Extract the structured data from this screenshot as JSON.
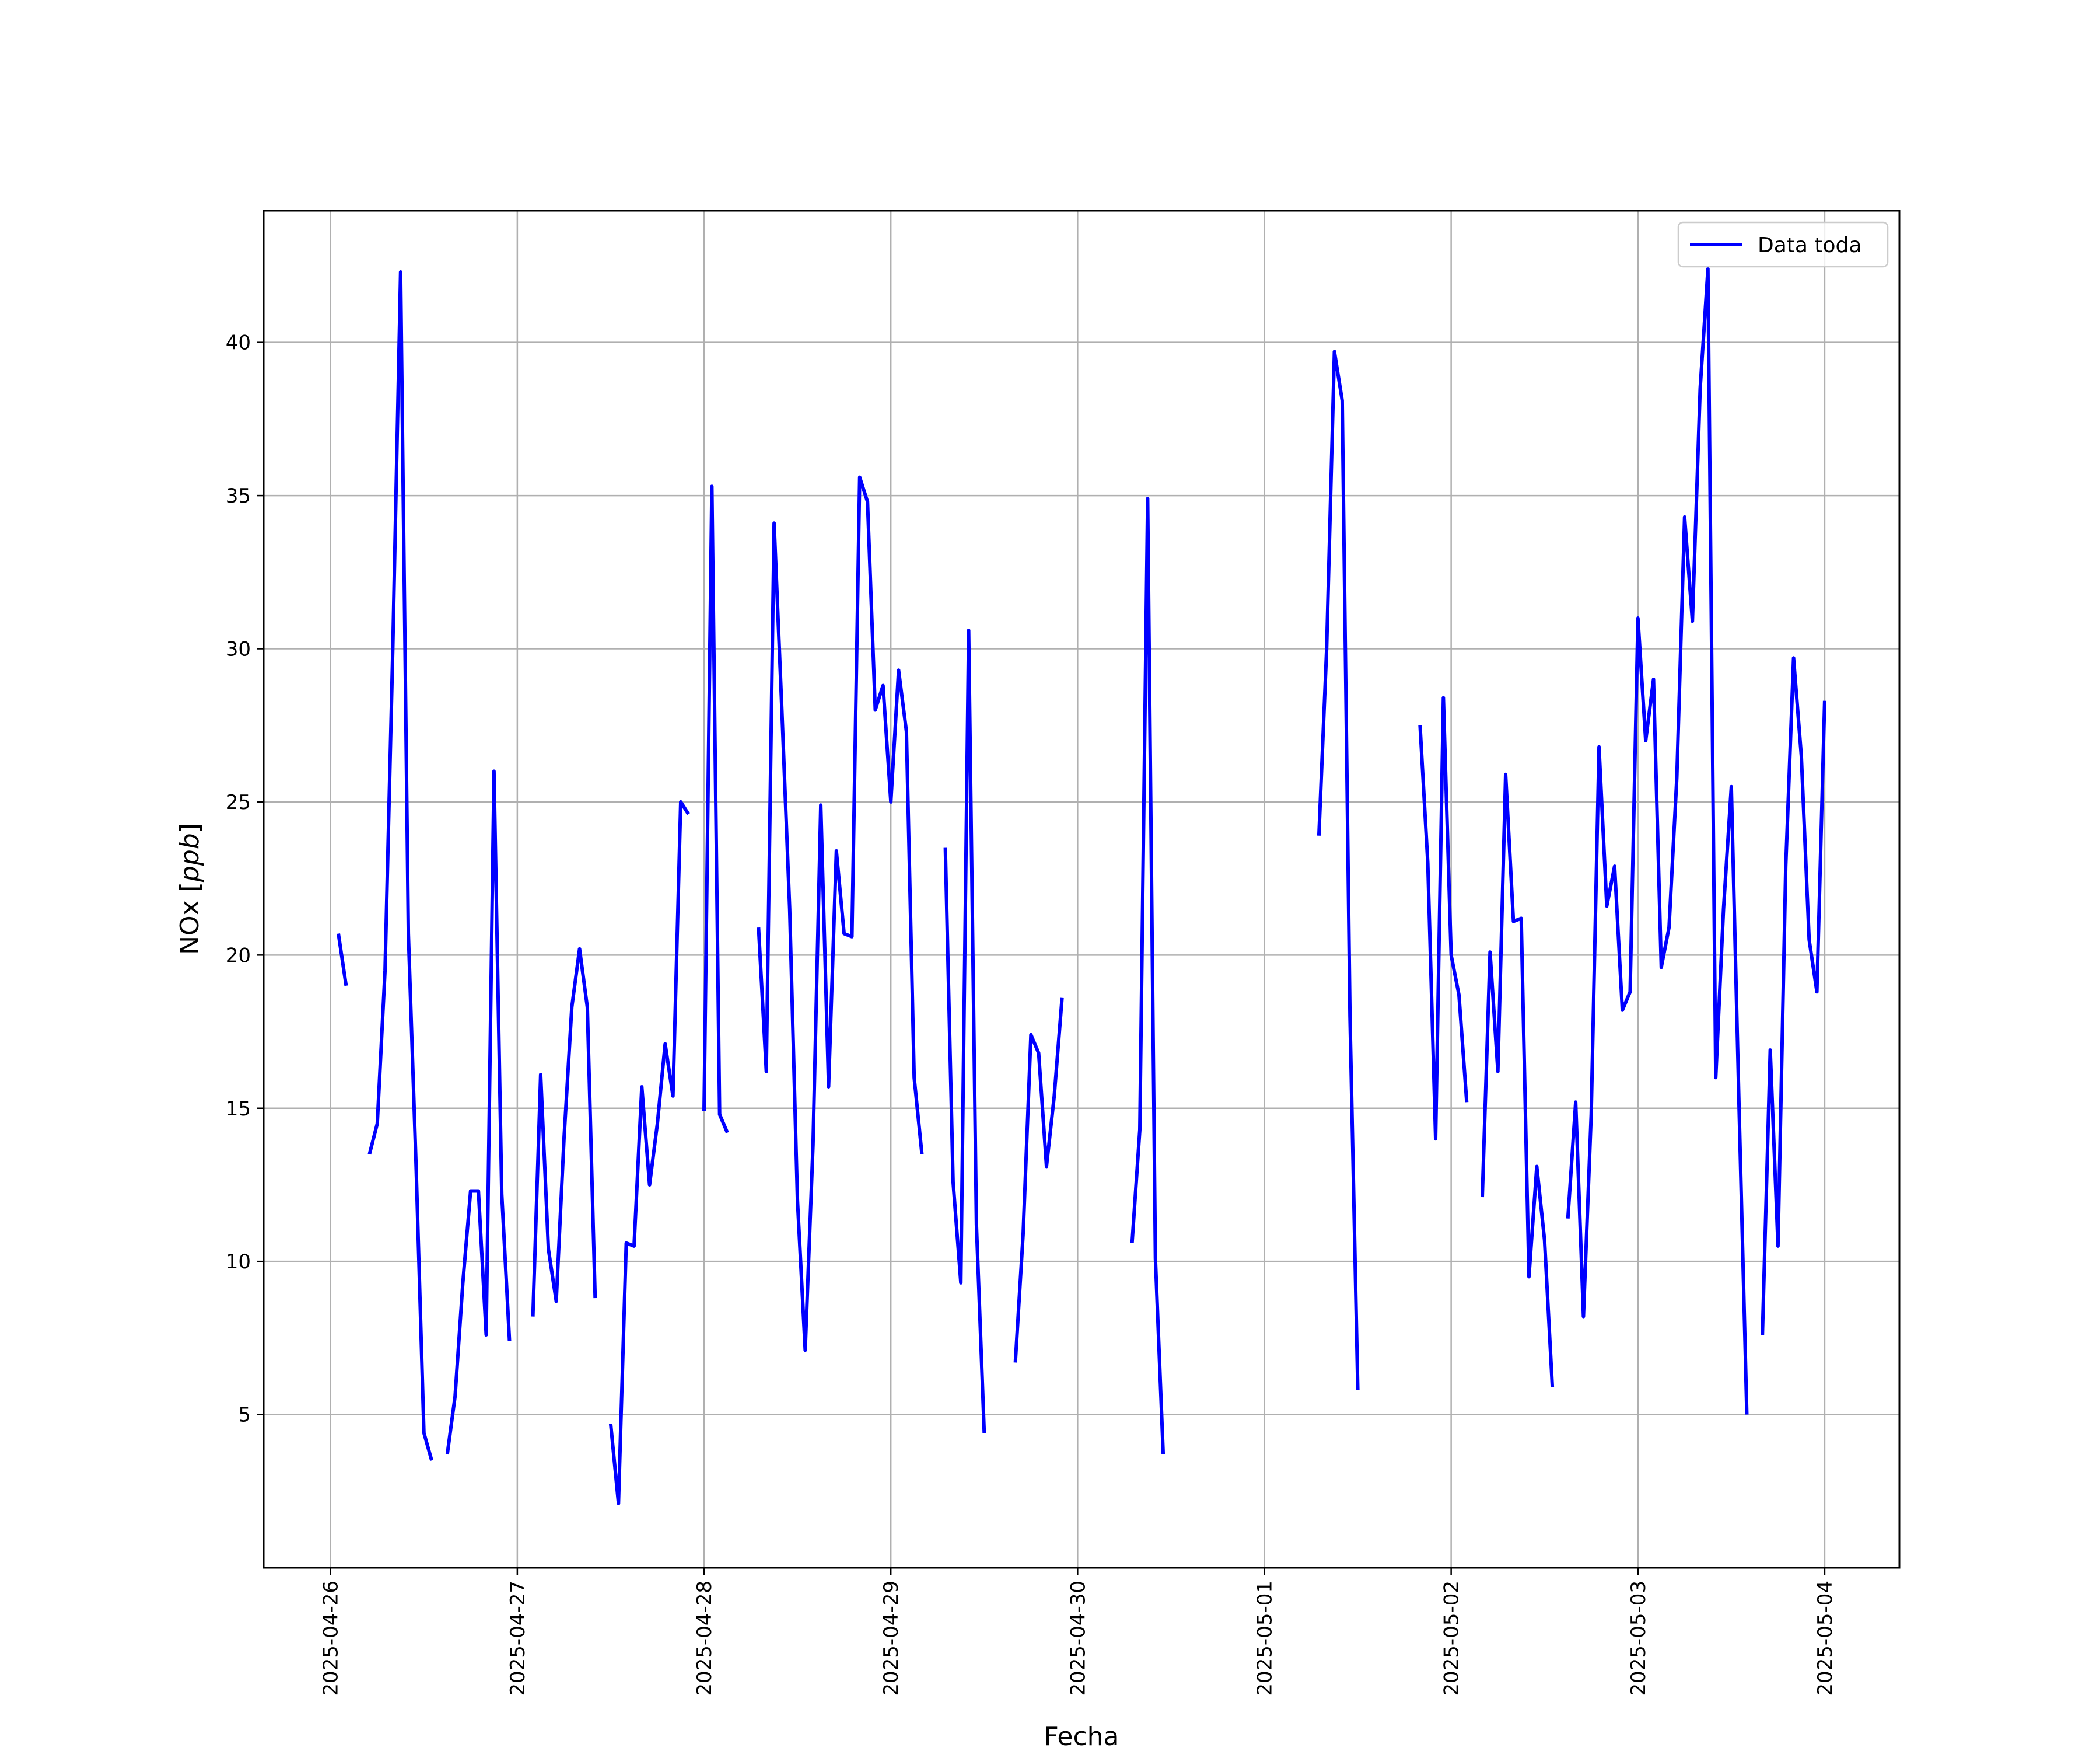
{
  "chart_data": {
    "type": "line",
    "title": "",
    "xlabel": "Fecha",
    "ylabel_text": "NOx [",
    "ylabel_unit": "ppb",
    "ylabel_close": "]",
    "x_range": [
      "2025-04-25T15:24",
      "2025-05-04T09:36"
    ],
    "ylim": [
      0.0,
      44.3
    ],
    "x_ticks": [
      "2025-04-26",
      "2025-04-27",
      "2025-04-28",
      "2025-04-29",
      "2025-04-30",
      "2025-05-01",
      "2025-05-02",
      "2025-05-03",
      "2025-05-04"
    ],
    "y_ticks": [
      "5",
      "10",
      "15",
      "20",
      "25",
      "30",
      "35",
      "40"
    ],
    "grid": true,
    "legend_position": "top-right",
    "series": [
      {
        "name": "Data toda",
        "color": "#0000ff",
        "segments": [
          [
            [
              "2025-04-26T01:00",
              20.7
            ],
            [
              "2025-04-26T02:00",
              19.0
            ]
          ],
          [
            [
              "2025-04-26T05:00",
              13.5
            ],
            [
              "2025-04-26T06:00",
              14.5
            ],
            [
              "2025-04-26T07:00",
              19.5
            ],
            [
              "2025-04-26T08:00",
              30.0
            ],
            [
              "2025-04-26T09:00",
              42.3
            ],
            [
              "2025-04-26T10:00",
              20.7
            ],
            [
              "2025-04-26T11:00",
              13.0
            ],
            [
              "2025-04-26T12:00",
              4.4
            ],
            [
              "2025-04-26T13:00",
              3.5
            ]
          ],
          [
            [
              "2025-04-26T15:00",
              3.7
            ],
            [
              "2025-04-26T16:00",
              5.6
            ],
            [
              "2025-04-26T17:00",
              9.3
            ],
            [
              "2025-04-26T18:00",
              12.3
            ],
            [
              "2025-04-26T19:00",
              12.3
            ],
            [
              "2025-04-26T20:00",
              7.6
            ],
            [
              "2025-04-26T21:00",
              26.0
            ],
            [
              "2025-04-26T22:00",
              12.2
            ],
            [
              "2025-04-26T23:00",
              7.4
            ]
          ],
          [
            [
              "2025-04-27T02:00",
              8.2
            ],
            [
              "2025-04-27T03:00",
              16.1
            ],
            [
              "2025-04-27T04:00",
              10.4
            ],
            [
              "2025-04-27T05:00",
              8.7
            ],
            [
              "2025-04-27T06:00",
              14.0
            ],
            [
              "2025-04-27T07:00",
              18.3
            ],
            [
              "2025-04-27T08:00",
              20.2
            ],
            [
              "2025-04-27T09:00",
              18.3
            ],
            [
              "2025-04-27T10:00",
              8.8
            ]
          ],
          [
            [
              "2025-04-27T12:00",
              4.7
            ],
            [
              "2025-04-27T13:00",
              2.1
            ],
            [
              "2025-04-27T14:00",
              10.6
            ],
            [
              "2025-04-27T15:00",
              10.5
            ],
            [
              "2025-04-27T16:00",
              15.7
            ],
            [
              "2025-04-27T17:00",
              12.5
            ],
            [
              "2025-04-27T18:00",
              14.5
            ],
            [
              "2025-04-27T19:00",
              17.1
            ],
            [
              "2025-04-27T20:00",
              15.4
            ],
            [
              "2025-04-27T21:00",
              25.0
            ],
            [
              "2025-04-27T22:00",
              24.6
            ]
          ],
          [
            [
              "2025-04-28T00:00",
              14.9
            ],
            [
              "2025-04-28T01:00",
              35.3
            ],
            [
              "2025-04-28T02:00",
              14.8
            ],
            [
              "2025-04-28T03:00",
              14.2
            ]
          ],
          [
            [
              "2025-04-28T07:00",
              20.9
            ],
            [
              "2025-04-28T08:00",
              16.2
            ],
            [
              "2025-04-28T09:00",
              34.1
            ],
            [
              "2025-04-28T10:00",
              28.0
            ],
            [
              "2025-04-28T11:00",
              21.5
            ],
            [
              "2025-04-28T12:00",
              12.0
            ],
            [
              "2025-04-28T13:00",
              7.1
            ],
            [
              "2025-04-28T14:00",
              13.8
            ],
            [
              "2025-04-28T15:00",
              24.9
            ],
            [
              "2025-04-28T16:00",
              15.7
            ],
            [
              "2025-04-28T17:00",
              23.4
            ],
            [
              "2025-04-28T18:00",
              20.7
            ],
            [
              "2025-04-28T19:00",
              20.6
            ],
            [
              "2025-04-28T20:00",
              35.6
            ],
            [
              "2025-04-28T21:00",
              34.8
            ],
            [
              "2025-04-28T22:00",
              28.0
            ],
            [
              "2025-04-28T23:00",
              28.8
            ],
            [
              "2025-04-29T00:00",
              25.0
            ],
            [
              "2025-04-29T01:00",
              29.3
            ],
            [
              "2025-04-29T02:00",
              27.3
            ],
            [
              "2025-04-29T03:00",
              16.0
            ],
            [
              "2025-04-29T04:00",
              13.5
            ]
          ],
          [
            [
              "2025-04-29T07:00",
              23.5
            ],
            [
              "2025-04-29T08:00",
              12.6
            ],
            [
              "2025-04-29T09:00",
              9.3
            ],
            [
              "2025-04-29T10:00",
              30.6
            ],
            [
              "2025-04-29T11:00",
              11.2
            ],
            [
              "2025-04-29T12:00",
              4.4
            ]
          ],
          [
            [
              "2025-04-29T16:00",
              6.7
            ],
            [
              "2025-04-29T17:00",
              10.9
            ],
            [
              "2025-04-29T18:00",
              17.4
            ],
            [
              "2025-04-29T19:00",
              16.8
            ],
            [
              "2025-04-29T20:00",
              13.1
            ],
            [
              "2025-04-29T21:00",
              15.4
            ],
            [
              "2025-04-29T22:00",
              18.6
            ]
          ],
          [
            [
              "2025-04-30T07:00",
              10.6
            ],
            [
              "2025-04-30T08:00",
              14.3
            ],
            [
              "2025-04-30T09:00",
              34.9
            ],
            [
              "2025-04-30T10:00",
              10.1
            ],
            [
              "2025-04-30T11:00",
              3.7
            ]
          ],
          [
            [
              "2025-05-01T07:00",
              23.9
            ],
            [
              "2025-05-01T08:00",
              30.0
            ],
            [
              "2025-05-01T09:00",
              39.7
            ],
            [
              "2025-05-01T10:00",
              38.1
            ],
            [
              "2025-05-01T11:00",
              18.0
            ],
            [
              "2025-05-01T12:00",
              5.8
            ]
          ],
          [
            [
              "2025-05-01T20:00",
              27.5
            ],
            [
              "2025-05-01T21:00",
              23.0
            ],
            [
              "2025-05-01T22:00",
              14.0
            ],
            [
              "2025-05-01T23:00",
              28.4
            ],
            [
              "2025-05-02T00:00",
              20.0
            ],
            [
              "2025-05-02T01:00",
              18.7
            ],
            [
              "2025-05-02T02:00",
              15.2
            ]
          ],
          [
            [
              "2025-05-02T04:00",
              12.1
            ],
            [
              "2025-05-02T05:00",
              20.1
            ],
            [
              "2025-05-02T06:00",
              16.2
            ],
            [
              "2025-05-02T07:00",
              25.9
            ],
            [
              "2025-05-02T08:00",
              21.1
            ],
            [
              "2025-05-02T09:00",
              21.2
            ],
            [
              "2025-05-02T10:00",
              9.5
            ],
            [
              "2025-05-02T11:00",
              13.1
            ],
            [
              "2025-05-02T12:00",
              10.7
            ],
            [
              "2025-05-02T13:00",
              5.9
            ]
          ],
          [
            [
              "2025-05-02T15:00",
              11.4
            ],
            [
              "2025-05-02T16:00",
              15.2
            ],
            [
              "2025-05-02T17:00",
              8.2
            ],
            [
              "2025-05-02T18:00",
              14.8
            ],
            [
              "2025-05-02T19:00",
              26.8
            ],
            [
              "2025-05-02T20:00",
              21.6
            ],
            [
              "2025-05-02T21:00",
              22.9
            ],
            [
              "2025-05-02T22:00",
              18.2
            ],
            [
              "2025-05-02T23:00",
              18.8
            ],
            [
              "2025-05-03T00:00",
              31.0
            ],
            [
              "2025-05-03T01:00",
              27.0
            ],
            [
              "2025-05-03T02:00",
              29.0
            ],
            [
              "2025-05-03T03:00",
              19.6
            ],
            [
              "2025-05-03T04:00",
              20.9
            ],
            [
              "2025-05-03T05:00",
              25.8
            ],
            [
              "2025-05-03T06:00",
              34.3
            ],
            [
              "2025-05-03T07:00",
              30.9
            ],
            [
              "2025-05-03T08:00",
              38.5
            ],
            [
              "2025-05-03T09:00",
              42.4
            ],
            [
              "2025-05-03T10:00",
              16.0
            ],
            [
              "2025-05-03T11:00",
              21.5
            ],
            [
              "2025-05-03T12:00",
              25.5
            ],
            [
              "2025-05-03T13:00",
              15.0
            ],
            [
              "2025-05-03T14:00",
              5.0
            ]
          ],
          [
            [
              "2025-05-03T16:00",
              7.6
            ],
            [
              "2025-05-03T17:00",
              16.9
            ],
            [
              "2025-05-03T18:00",
              10.5
            ],
            [
              "2025-05-03T19:00",
              22.9
            ],
            [
              "2025-05-03T20:00",
              29.7
            ],
            [
              "2025-05-03T21:00",
              26.5
            ],
            [
              "2025-05-03T22:00",
              20.5
            ],
            [
              "2025-05-03T23:00",
              18.8
            ],
            [
              "2025-05-04T00:00",
              28.3
            ]
          ]
        ]
      }
    ]
  }
}
